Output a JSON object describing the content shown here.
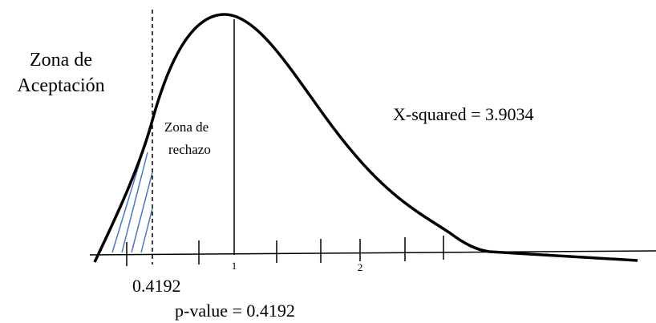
{
  "labels": {
    "acceptance": [
      "Zona de",
      "Aceptación"
    ],
    "rejection": [
      "Zona de",
      "rechazo"
    ],
    "statistic": "X-squared = 3.9034",
    "critical": "0.4192",
    "pvalue": "p-value = 0.4192",
    "ticks": [
      "1",
      "2"
    ]
  }
}
